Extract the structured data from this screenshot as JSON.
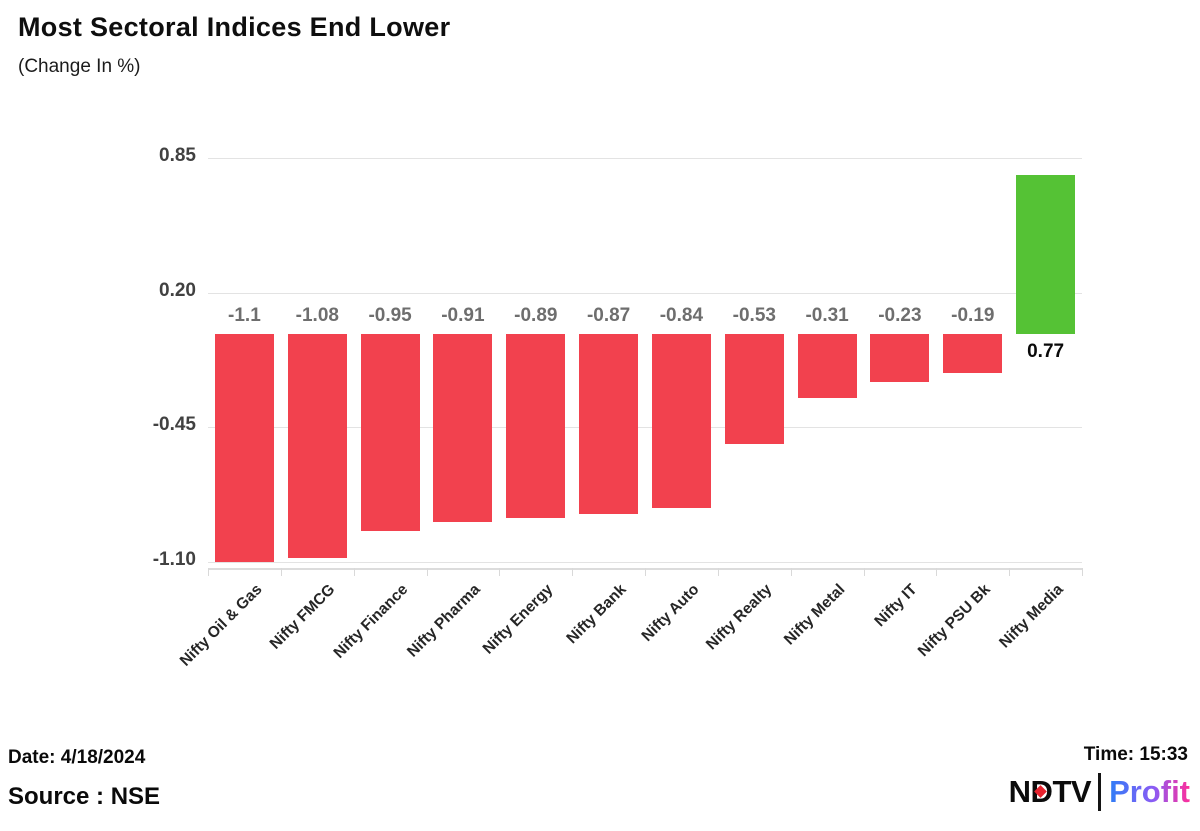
{
  "title": "Most Sectoral Indices End Lower",
  "subtitle": "(Change In %)",
  "chart_data": {
    "type": "bar",
    "categories": [
      "Nifty Oil & Gas",
      "Nifty FMCG",
      "Nifty Finance",
      "Nifty Pharma",
      "Nifty Energy",
      "Nifty Bank",
      "Nifty Auto",
      "Nifty Realty",
      "Nifty Metal",
      "Nifty IT",
      "Nifty PSU Bk",
      "Nifty Media"
    ],
    "values": [
      -1.1,
      -1.08,
      -0.95,
      -0.91,
      -0.89,
      -0.87,
      -0.84,
      -0.53,
      -0.31,
      -0.23,
      -0.19,
      0.77
    ],
    "value_labels": [
      "-1.1",
      "-1.08",
      "-0.95",
      "-0.91",
      "-0.89",
      "-0.87",
      "-0.84",
      "-0.53",
      "-0.31",
      "-0.23",
      "-0.19",
      "0.77"
    ],
    "yticks": [
      {
        "value": 0.85,
        "label": "0.85"
      },
      {
        "value": 0.2,
        "label": "0.20"
      },
      {
        "value": -0.45,
        "label": "-0.45"
      },
      {
        "value": -1.1,
        "label": "-1.10"
      }
    ],
    "ylim": [
      -1.22,
      0.92
    ],
    "xlabel": "",
    "ylabel": "",
    "grid": true,
    "legend": false,
    "colors": {
      "negative_bar": "#f2414e",
      "positive_bar": "#55c235"
    }
  },
  "footer": {
    "date": "Date: 4/18/2024",
    "source": "Source : NSE",
    "time": "Time: 15:33",
    "logo": {
      "brand": "NDTV",
      "divider": "|",
      "product": "Profit",
      "dot_color": "#e8232e",
      "gradient_start": "#2f7df6",
      "gradient_end": "#ff2e9a"
    }
  }
}
